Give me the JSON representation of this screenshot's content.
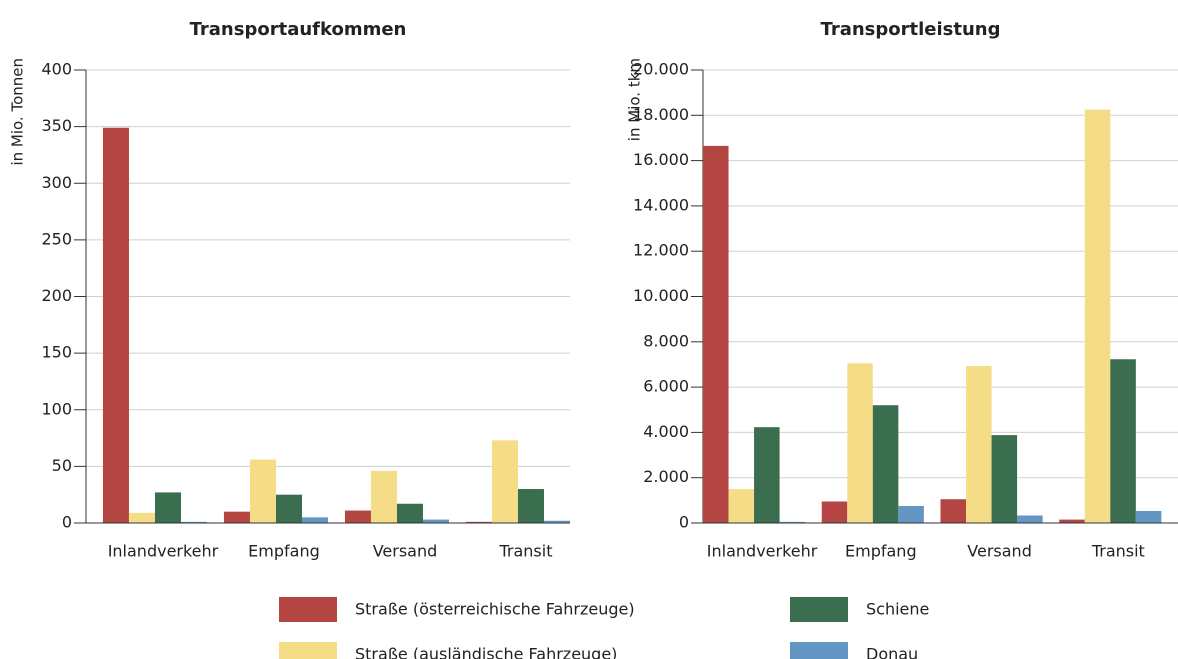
{
  "chart_data": [
    {
      "type": "bar",
      "title": "Transportaufkommen",
      "y_label": "in Mio. Tonnen",
      "categories": [
        "Inlandverkehr",
        "Empfang",
        "Versand",
        "Transit"
      ],
      "series": [
        {
          "name": "Straße (österreichische Fahrzeuge)",
          "color": "#b34542",
          "values": [
            349,
            10,
            11,
            1
          ]
        },
        {
          "name": "Straße (ausländische Fahrzeuge)",
          "color": "#f5dd88",
          "values": [
            9,
            56,
            46,
            73
          ]
        },
        {
          "name": "Schiene",
          "color": "#3a6e4e",
          "values": [
            27,
            25,
            17,
            30
          ]
        },
        {
          "name": "Donau",
          "color": "#6496c4",
          "values": [
            1,
            5,
            3,
            2
          ]
        }
      ],
      "ylim": [
        0,
        400
      ],
      "yticks": [
        0,
        50,
        100,
        150,
        200,
        250,
        300,
        350,
        400
      ],
      "grid": true
    },
    {
      "type": "bar",
      "title": "Transportleistung",
      "y_label": "in Mio. tkm",
      "categories": [
        "Inlandverkehr",
        "Empfang",
        "Versand",
        "Transit"
      ],
      "series": [
        {
          "color": "#b34542",
          "values": [
            16650,
            950,
            1050,
            150
          ]
        },
        {
          "color": "#f5dd88",
          "values": [
            1500,
            7050,
            6930,
            18250
          ]
        },
        {
          "color": "#3a6e4e",
          "values": [
            4230,
            5200,
            3880,
            7230
          ]
        },
        {
          "color": "#6496c4",
          "values": [
            50,
            750,
            330,
            530
          ]
        }
      ],
      "ylim": [
        0,
        20000
      ],
      "yticks": [
        0,
        {
          "value": 2000,
          "label": "2.000"
        },
        {
          "value": 4000,
          "label": "4.000"
        },
        {
          "value": 6000,
          "label": "6.000"
        },
        {
          "value": 8000,
          "label": "8.000"
        },
        {
          "value": 10000,
          "label": "10.000"
        },
        {
          "value": 12000,
          "label": "12.000"
        },
        {
          "value": 14000,
          "label": "14.000"
        },
        {
          "value": 16000,
          "label": "16.000"
        },
        {
          "value": 18000,
          "label": "18.000"
        },
        {
          "value": 20000,
          "label": "20.000"
        }
      ],
      "grid": true
    }
  ]
}
